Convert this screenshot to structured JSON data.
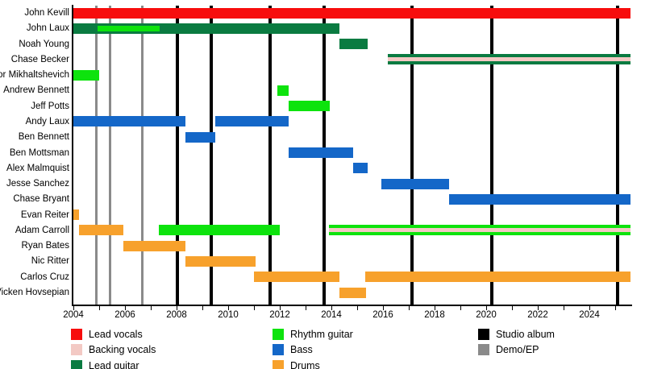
{
  "chart_data": {
    "type": "bar",
    "subtype": "band-membership-timeline",
    "xlabel": "",
    "ylabel": "",
    "x_axis": {
      "start_year": 2004,
      "end_year": 2025.6,
      "tick_every_years": 1,
      "labeled_ticks": [
        2004,
        2006,
        2008,
        2010,
        2012,
        2014,
        2016,
        2018,
        2020,
        2022,
        2024
      ],
      "grid": "off"
    },
    "colors": {
      "lead_vocals": "#f70d0d",
      "backing_vocals": "#f3c9c4",
      "lead_guitar": "#0a7b41",
      "rhythm_guitar": "#0de30d",
      "bass": "#1467c8",
      "drums": "#f7a12c",
      "studio_album": "#000000",
      "demo_ep": "#8a8a8a"
    },
    "members": [
      {
        "name": "John Kevill",
        "bars": [
          {
            "role": "lead_vocals",
            "start": 2004.0,
            "end": 2025.6
          }
        ]
      },
      {
        "name": "John Laux",
        "bars": [
          {
            "role": "lead_guitar",
            "start": 2004.0,
            "end": 2014.3
          },
          {
            "role": "rhythm_guitar",
            "start": 2004.94,
            "end": 2007.34,
            "inset": true
          }
        ]
      },
      {
        "name": "Noah Young",
        "bars": [
          {
            "role": "lead_guitar",
            "start": 2014.3,
            "end": 2015.4
          }
        ]
      },
      {
        "name": "Chase Becker",
        "bars": [
          {
            "stripes": [
              "lead_guitar",
              "backing_vocals",
              "lead_guitar"
            ],
            "start": 2016.2,
            "end": 2025.6
          }
        ]
      },
      {
        "name": "Victor Mikhaltshevich",
        "bars": [
          {
            "role": "rhythm_guitar",
            "start": 2004.0,
            "end": 2005.0
          }
        ]
      },
      {
        "name": "Andrew Bennett",
        "bars": [
          {
            "role": "rhythm_guitar",
            "start": 2011.9,
            "end": 2012.35
          }
        ]
      },
      {
        "name": "Jeff Potts",
        "bars": [
          {
            "role": "rhythm_guitar",
            "start": 2012.35,
            "end": 2013.95
          }
        ]
      },
      {
        "name": "Andy Laux",
        "bars": [
          {
            "role": "bass",
            "start": 2004.0,
            "end": 2008.35
          },
          {
            "role": "bass",
            "start": 2009.5,
            "end": 2012.35
          }
        ]
      },
      {
        "name": "Ben Bennett",
        "bars": [
          {
            "role": "bass",
            "start": 2008.35,
            "end": 2009.5
          }
        ]
      },
      {
        "name": "Ben Mottsman",
        "bars": [
          {
            "role": "bass",
            "start": 2012.35,
            "end": 2014.85
          }
        ]
      },
      {
        "name": "Alex Malmquist",
        "bars": [
          {
            "role": "bass",
            "start": 2014.85,
            "end": 2015.4
          }
        ]
      },
      {
        "name": "Jesse Sanchez",
        "bars": [
          {
            "role": "bass",
            "start": 2015.95,
            "end": 2018.55
          }
        ]
      },
      {
        "name": "Chase Bryant",
        "bars": [
          {
            "role": "bass",
            "start": 2018.55,
            "end": 2025.6
          }
        ]
      },
      {
        "name": "Evan Reiter",
        "bars": [
          {
            "role": "drums",
            "start": 2004.0,
            "end": 2004.22
          }
        ]
      },
      {
        "name": "Adam Carroll",
        "bars": [
          {
            "role": "drums",
            "start": 2004.22,
            "end": 2005.95
          },
          {
            "role": "rhythm_guitar",
            "start": 2007.3,
            "end": 2012.0
          },
          {
            "stripes": [
              "rhythm_guitar",
              "backing_vocals",
              "rhythm_guitar"
            ],
            "start": 2013.9,
            "end": 2025.6
          }
        ]
      },
      {
        "name": "Ryan Bates",
        "bars": [
          {
            "role": "drums",
            "start": 2005.95,
            "end": 2008.35
          }
        ]
      },
      {
        "name": "Nic Ritter",
        "bars": [
          {
            "role": "drums",
            "start": 2008.35,
            "end": 2011.05
          }
        ]
      },
      {
        "name": "Carlos Cruz",
        "bars": [
          {
            "role": "drums",
            "start": 2011.0,
            "end": 2014.3
          },
          {
            "role": "drums",
            "start": 2015.3,
            "end": 2025.6
          }
        ]
      },
      {
        "name": "Vicken Hovsepian",
        "bars": [
          {
            "role": "drums",
            "start": 2014.3,
            "end": 2015.35
          }
        ]
      }
    ],
    "event_lines": {
      "studio_albums": [
        2008.02,
        2009.34,
        2011.64,
        2013.73,
        2017.13,
        2020.22,
        2025.1
      ],
      "demos_eps": [
        2004.9,
        2005.42,
        2006.66
      ]
    },
    "legend": {
      "position": "bottom",
      "columns": [
        {
          "items": [
            {
              "label": "Lead vocals",
              "color_key": "lead_vocals"
            },
            {
              "label": "Backing vocals",
              "color_key": "backing_vocals"
            },
            {
              "label": "Lead guitar",
              "color_key": "lead_guitar"
            }
          ]
        },
        {
          "items": [
            {
              "label": "Rhythm guitar",
              "color_key": "rhythm_guitar"
            },
            {
              "label": "Bass",
              "color_key": "bass"
            },
            {
              "label": "Drums",
              "color_key": "drums"
            }
          ]
        },
        {
          "items": [
            {
              "label": "Studio album",
              "color_key": "studio_album"
            },
            {
              "label": "Demo/EP",
              "color_key": "demo_ep"
            }
          ]
        }
      ]
    }
  }
}
